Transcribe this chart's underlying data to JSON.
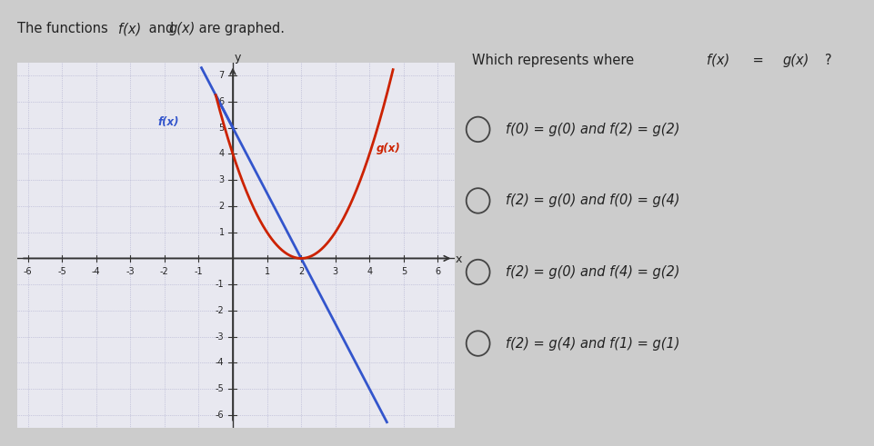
{
  "f_color": "#3355CC",
  "g_color": "#CC2200",
  "axis_color": "#444444",
  "grid_color": "#AAAACC",
  "bg_color": "#D8D8E0",
  "outer_bg": "#C8C8D0",
  "text_color": "#222222",
  "f_slope": -2.5,
  "f_intercept": 5.0,
  "g_vertex_x": 2.0,
  "g_vertex_y": 0.0,
  "xmin": -6,
  "xmax": 6,
  "ymin": -6,
  "ymax": 7,
  "options": [
    [
      "f(0) = g(0) and f(2) = g(2)"
    ],
    [
      "f(2) = g(0) and f(0) = g(4)"
    ],
    [
      "f(2) = g(0) and f(4) = g(2)"
    ],
    [
      "f(2) = g(4) and f(1) = g(1)"
    ]
  ],
  "title_left_plain": "The functions ",
  "title_fx": "f(x)",
  "title_mid": " and ",
  "title_gx": "g(x)",
  "title_end": " are graphed.",
  "q_plain": "Which represents where ",
  "q_fx": "f(x)",
  "q_eq": " = ",
  "q_gx": "g(x)",
  "q_end": "?"
}
